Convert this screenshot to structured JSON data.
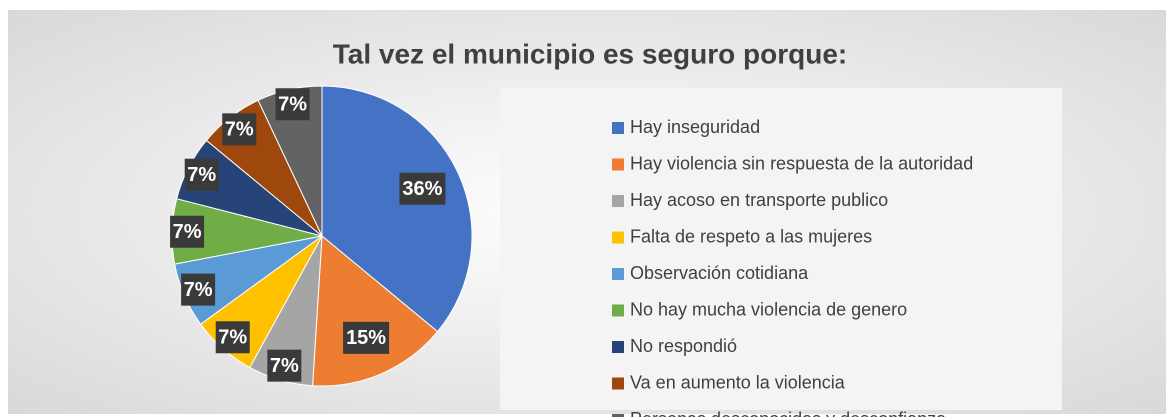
{
  "chart_data": {
    "type": "pie",
    "title": "Tal vez el municipio es seguro porque:",
    "categories": [
      "Hay inseguridad",
      "Hay violencia sin respuesta de la autoridad",
      "Hay acoso en transporte publico",
      "Falta de respeto a las mujeres",
      "Observación cotidiana",
      "No hay mucha violencia de genero",
      "No respondió",
      "Va en aumento la violencia",
      "Personas desconocidas y desconfianza"
    ],
    "values": [
      36,
      15,
      7,
      7,
      7,
      7,
      7,
      7,
      7
    ],
    "value_labels": [
      "36%",
      "15%",
      "7%",
      "7%",
      "7%",
      "7%",
      "7%",
      "7%",
      "7%"
    ],
    "colors": [
      "#4472c4",
      "#ed7d31",
      "#a5a5a5",
      "#ffc000",
      "#5b9bd5",
      "#70ad47",
      "#264478",
      "#9e480e",
      "#636363"
    ],
    "legend": "right"
  }
}
